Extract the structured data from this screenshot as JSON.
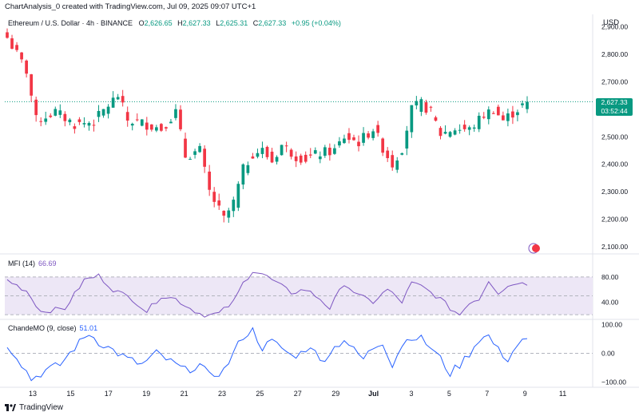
{
  "header": {
    "text": "ChartAnalysis_0 created with TradingView.com, Jul 09, 2025 09:07 UTC+1"
  },
  "symbol": {
    "title": "Ethereum / U.S. Dollar · 4h · BINANCE",
    "open_label": "O",
    "open": "2,626.65",
    "high_label": "H",
    "high": "2,627.33",
    "low_label": "L",
    "low": "2,625.31",
    "close_label": "C",
    "close": "2,627.33",
    "change": "+0.95 (+0.04%)"
  },
  "currency": "USD",
  "last_price": {
    "price": "2,627.33",
    "countdown": "03:52:44"
  },
  "mfi": {
    "label": "MFI (14)",
    "value": "66.69"
  },
  "chande": {
    "label": "ChandeMO (9, close)",
    "value": "51.01"
  },
  "footer": {
    "brand": "TradingView"
  },
  "colors": {
    "up": "#089981",
    "down": "#f23645",
    "mfi": "#7e57c2",
    "mfi_band": "#ede7f6",
    "chande": "#2962ff"
  },
  "chart_data": [
    {
      "type": "candlestick",
      "y_ticks": [
        "2,900.00",
        "2,800.00",
        "2,700.00",
        "2,600.00",
        "2,500.00",
        "2,400.00",
        "2,300.00",
        "2,200.00",
        "2,100.00"
      ],
      "x_ticks": [
        "13",
        "15",
        "17",
        "19",
        "21",
        "23",
        "25",
        "27",
        "29",
        "Jul",
        "3",
        "5",
        "7",
        "9",
        "11"
      ],
      "ylim": [
        2080,
        2910
      ],
      "close_anchors": [
        [
          0,
          2860
        ],
        [
          4,
          2740
        ],
        [
          6,
          2560
        ],
        [
          10,
          2590
        ],
        [
          14,
          2545
        ],
        [
          18,
          2555
        ],
        [
          21,
          2615
        ],
        [
          23,
          2650
        ],
        [
          25,
          2560
        ],
        [
          28,
          2550
        ],
        [
          32,
          2530
        ],
        [
          35,
          2590
        ],
        [
          37,
          2430
        ],
        [
          40,
          2450
        ],
        [
          42,
          2300
        ],
        [
          45,
          2200
        ],
        [
          47,
          2260
        ],
        [
          49,
          2380
        ],
        [
          51,
          2440
        ],
        [
          53,
          2450
        ],
        [
          55,
          2410
        ],
        [
          57,
          2470
        ],
        [
          60,
          2430
        ],
        [
          62,
          2420
        ],
        [
          65,
          2440
        ],
        [
          68,
          2450
        ],
        [
          70,
          2500
        ],
        [
          73,
          2480
        ],
        [
          76,
          2530
        ],
        [
          78,
          2460
        ],
        [
          80,
          2400
        ],
        [
          82,
          2460
        ],
        [
          84,
          2600
        ],
        [
          86,
          2620
        ],
        [
          88,
          2590
        ],
        [
          90,
          2510
        ],
        [
          93,
          2530
        ],
        [
          96,
          2525
        ],
        [
          99,
          2580
        ],
        [
          101,
          2600
        ],
        [
          103,
          2560
        ],
        [
          106,
          2600
        ],
        [
          108,
          2627.33
        ]
      ]
    },
    {
      "type": "line",
      "name": "MFI (14)",
      "y_ticks": [
        "80.00",
        "40.00"
      ],
      "ylim": [
        15,
        95
      ],
      "band": [
        20,
        80
      ],
      "anchors": [
        [
          0,
          75
        ],
        [
          4,
          58
        ],
        [
          7,
          25
        ],
        [
          12,
          30
        ],
        [
          16,
          75
        ],
        [
          19,
          82
        ],
        [
          22,
          60
        ],
        [
          26,
          45
        ],
        [
          29,
          25
        ],
        [
          32,
          50
        ],
        [
          35,
          45
        ],
        [
          38,
          30
        ],
        [
          41,
          18
        ],
        [
          44,
          22
        ],
        [
          47,
          40
        ],
        [
          49,
          70
        ],
        [
          51,
          90
        ],
        [
          53,
          85
        ],
        [
          56,
          70
        ],
        [
          59,
          55
        ],
        [
          62,
          60
        ],
        [
          65,
          45
        ],
        [
          67,
          30
        ],
        [
          70,
          70
        ],
        [
          73,
          50
        ],
        [
          76,
          40
        ],
        [
          79,
          60
        ],
        [
          82,
          40
        ],
        [
          84,
          70
        ],
        [
          86,
          65
        ],
        [
          88,
          55
        ],
        [
          90,
          45
        ],
        [
          92,
          30
        ],
        [
          94,
          20
        ],
        [
          96,
          40
        ],
        [
          98,
          45
        ],
        [
          100,
          75
        ],
        [
          102,
          55
        ],
        [
          104,
          65
        ],
        [
          106,
          72
        ],
        [
          108,
          66.69
        ]
      ]
    },
    {
      "type": "line",
      "name": "ChandeMO (9, close)",
      "y_ticks": [
        "100.00",
        "0.00",
        "−100.00"
      ],
      "ylim": [
        -110,
        110
      ],
      "anchors": [
        [
          0,
          30
        ],
        [
          2,
          -10
        ],
        [
          5,
          -90
        ],
        [
          8,
          -60
        ],
        [
          11,
          -40
        ],
        [
          14,
          20
        ],
        [
          17,
          70
        ],
        [
          19,
          40
        ],
        [
          22,
          10
        ],
        [
          25,
          -20
        ],
        [
          28,
          -40
        ],
        [
          31,
          0
        ],
        [
          34,
          -30
        ],
        [
          37,
          -60
        ],
        [
          40,
          -40
        ],
        [
          42,
          -80
        ],
        [
          45,
          -60
        ],
        [
          47,
          0
        ],
        [
          49,
          60
        ],
        [
          51,
          80
        ],
        [
          53,
          20
        ],
        [
          55,
          40
        ],
        [
          57,
          20
        ],
        [
          59,
          -10
        ],
        [
          61,
          0
        ],
        [
          63,
          30
        ],
        [
          65,
          -30
        ],
        [
          68,
          20
        ],
        [
          70,
          50
        ],
        [
          72,
          10
        ],
        [
          74,
          -20
        ],
        [
          76,
          20
        ],
        [
          78,
          40
        ],
        [
          80,
          -40
        ],
        [
          82,
          30
        ],
        [
          84,
          60
        ],
        [
          86,
          50
        ],
        [
          88,
          20
        ],
        [
          90,
          -20
        ],
        [
          92,
          -70
        ],
        [
          94,
          -40
        ],
        [
          96,
          0
        ],
        [
          98,
          50
        ],
        [
          100,
          60
        ],
        [
          102,
          10
        ],
        [
          104,
          -20
        ],
        [
          106,
          30
        ],
        [
          108,
          51.01
        ]
      ]
    }
  ]
}
